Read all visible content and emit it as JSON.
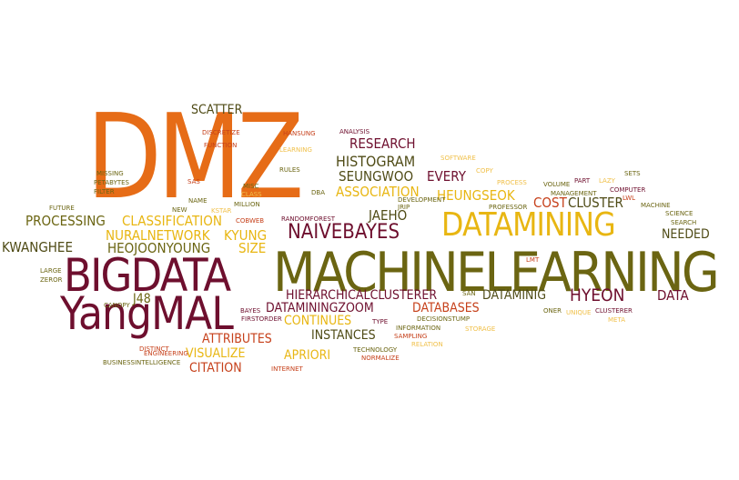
{
  "palette": {
    "orange": "#e66c17",
    "maroon": "#6e0f2e",
    "olive": "#6b6512",
    "gold": "#e8b612",
    "red": "#c6401a",
    "darkolive": "#4f4b16",
    "lightgold": "#f0c04a",
    "background": "#ffffff"
  },
  "words": [
    {
      "text": "DMZ",
      "color": "#e66c17"
    },
    {
      "text": "MACHINELEARNING",
      "color": "#6b6512"
    },
    {
      "text": "BIGDATA",
      "color": "#6e0f2e"
    },
    {
      "text": "YangMAL",
      "color": "#6e0f2e"
    },
    {
      "text": "DATAMINING",
      "color": "#e8b612"
    },
    {
      "text": "NAIVEBAYES",
      "color": "#6e0f2e"
    },
    {
      "text": "HISTOGRAM",
      "color": "#4f4b16"
    },
    {
      "text": "RESEARCH",
      "color": "#6e0f2e"
    },
    {
      "text": "SCATTER",
      "color": "#4f4b16"
    },
    {
      "text": "SEUNGWOO",
      "color": "#4f4b16"
    },
    {
      "text": "EVERY",
      "color": "#6e0f2e"
    },
    {
      "text": "ASSOCIATION",
      "color": "#e8b612"
    },
    {
      "text": "HEUNGSEOK",
      "color": "#e8b612"
    },
    {
      "text": "COST",
      "color": "#c6401a"
    },
    {
      "text": "CLUSTER",
      "color": "#4f4b16"
    },
    {
      "text": "JAEHO",
      "color": "#4f4b16"
    },
    {
      "text": "NEEDED",
      "color": "#4f4b16"
    },
    {
      "text": "PROCESSING",
      "color": "#6b6512"
    },
    {
      "text": "CLASSIFICATION",
      "color": "#e8b612"
    },
    {
      "text": "NURALNETWORK",
      "color": "#e8b612"
    },
    {
      "text": "KYUNG",
      "color": "#e8b612"
    },
    {
      "text": "KWANGHEE",
      "color": "#4f4b16"
    },
    {
      "text": "HEOJOONYOUNG",
      "color": "#6b6512"
    },
    {
      "text": "SIZE",
      "color": "#e8b612"
    },
    {
      "text": "HIERARCHICALCLUSTERER",
      "color": "#6e0f2e"
    },
    {
      "text": "DATAMINIG",
      "color": "#4f4b16"
    },
    {
      "text": "HYEON",
      "color": "#6e0f2e"
    },
    {
      "text": "DATA",
      "color": "#6e0f2e"
    },
    {
      "text": "DATAMININGZOOM",
      "color": "#6e0f2e"
    },
    {
      "text": "DATABASES",
      "color": "#c6401a"
    },
    {
      "text": "CONTINUES",
      "color": "#e8b612"
    },
    {
      "text": "INSTANCES",
      "color": "#4f4b16"
    },
    {
      "text": "ATTRIBUTES",
      "color": "#c6401a"
    },
    {
      "text": "VISUALIZE",
      "color": "#e8b612"
    },
    {
      "text": "APRIORI",
      "color": "#e8b612"
    },
    {
      "text": "CITATION",
      "color": "#c6401a"
    },
    {
      "text": "J48",
      "color": "#6b6512"
    },
    {
      "text": "FUTURE",
      "color": "#6b6512"
    },
    {
      "text": "NEW",
      "color": "#6b6512"
    },
    {
      "text": "NAME",
      "color": "#6b6512"
    },
    {
      "text": "MISC",
      "color": "#6b6512"
    },
    {
      "text": "CLASS",
      "color": "#f0c04a"
    },
    {
      "text": "DBA",
      "color": "#6b6512"
    },
    {
      "text": "MISSING",
      "color": "#6b6512"
    },
    {
      "text": "PETABYTES",
      "color": "#6b6512"
    },
    {
      "text": "FILTER",
      "color": "#6b6512"
    },
    {
      "text": "SAS",
      "color": "#c6401a"
    },
    {
      "text": "DISCRETIZE",
      "color": "#c6401a"
    },
    {
      "text": "FUNCTION",
      "color": "#c6401a"
    },
    {
      "text": "HANSUNG",
      "color": "#c6401a"
    },
    {
      "text": "LEARNING",
      "color": "#f0c04a"
    },
    {
      "text": "ANALYSIS",
      "color": "#6e0f2e"
    },
    {
      "text": "RULES",
      "color": "#6b6512"
    },
    {
      "text": "SOFTWARE",
      "color": "#f0c04a"
    },
    {
      "text": "COPY",
      "color": "#f0c04a"
    },
    {
      "text": "PROCESS",
      "color": "#f0c04a"
    },
    {
      "text": "LAZY",
      "color": "#f0c04a"
    },
    {
      "text": "PART",
      "color": "#6e0f2e"
    },
    {
      "text": "SETS",
      "color": "#6b6512"
    },
    {
      "text": "VOLUME",
      "color": "#6b6512"
    },
    {
      "text": "MANAGEMENT",
      "color": "#6b6512"
    },
    {
      "text": "COMPUTER",
      "color": "#6e0f2e"
    },
    {
      "text": "LWL",
      "color": "#c6401a"
    },
    {
      "text": "MACHINE",
      "color": "#6b6512"
    },
    {
      "text": "SCIENCE",
      "color": "#6b6512"
    },
    {
      "text": "SEARCH",
      "color": "#6b6512"
    },
    {
      "text": "KSTAR",
      "color": "#f0c04a"
    },
    {
      "text": "MILLION",
      "color": "#6b6512"
    },
    {
      "text": "COBWEB",
      "color": "#c6401a"
    },
    {
      "text": "RANDOMFOREST",
      "color": "#6e0f2e"
    },
    {
      "text": "JRIP",
      "color": "#6b6512"
    },
    {
      "text": "DEVELOPMENT",
      "color": "#6b6512"
    },
    {
      "text": "PROFESSOR",
      "color": "#6b6512"
    },
    {
      "text": "LMT",
      "color": "#c6401a"
    },
    {
      "text": "LARGE",
      "color": "#6b6512"
    },
    {
      "text": "ZEROR",
      "color": "#6b6512"
    },
    {
      "text": "CANOPY",
      "color": "#6b6512"
    },
    {
      "text": "DISTINCT",
      "color": "#c6401a"
    },
    {
      "text": "ENGINEERING",
      "color": "#c6401a"
    },
    {
      "text": "BUSINESSINTELLIGENCE",
      "color": "#6b6512"
    },
    {
      "text": "BAYES",
      "color": "#6e0f2e"
    },
    {
      "text": "FIRSTORDER",
      "color": "#6e0f2e"
    },
    {
      "text": "SAN",
      "color": "#6b6512"
    },
    {
      "text": "TYPE",
      "color": "#6e0f2e"
    },
    {
      "text": "DECISIONSTUMP",
      "color": "#6b6512"
    },
    {
      "text": "INFORMATION",
      "color": "#6b6512"
    },
    {
      "text": "SAMPLING",
      "color": "#c6401a"
    },
    {
      "text": "RELATION",
      "color": "#f0c04a"
    },
    {
      "text": "STORAGE",
      "color": "#f0c04a"
    },
    {
      "text": "TECHNOLOGY",
      "color": "#6b6512"
    },
    {
      "text": "NORMALIZE",
      "color": "#c6401a"
    },
    {
      "text": "INTERNET",
      "color": "#c6401a"
    },
    {
      "text": "ONER",
      "color": "#6b6512"
    },
    {
      "text": "UNIQUE",
      "color": "#f0c04a"
    },
    {
      "text": "CLUSTERER",
      "color": "#6e0f2e"
    },
    {
      "text": "META",
      "color": "#f0c04a"
    }
  ]
}
